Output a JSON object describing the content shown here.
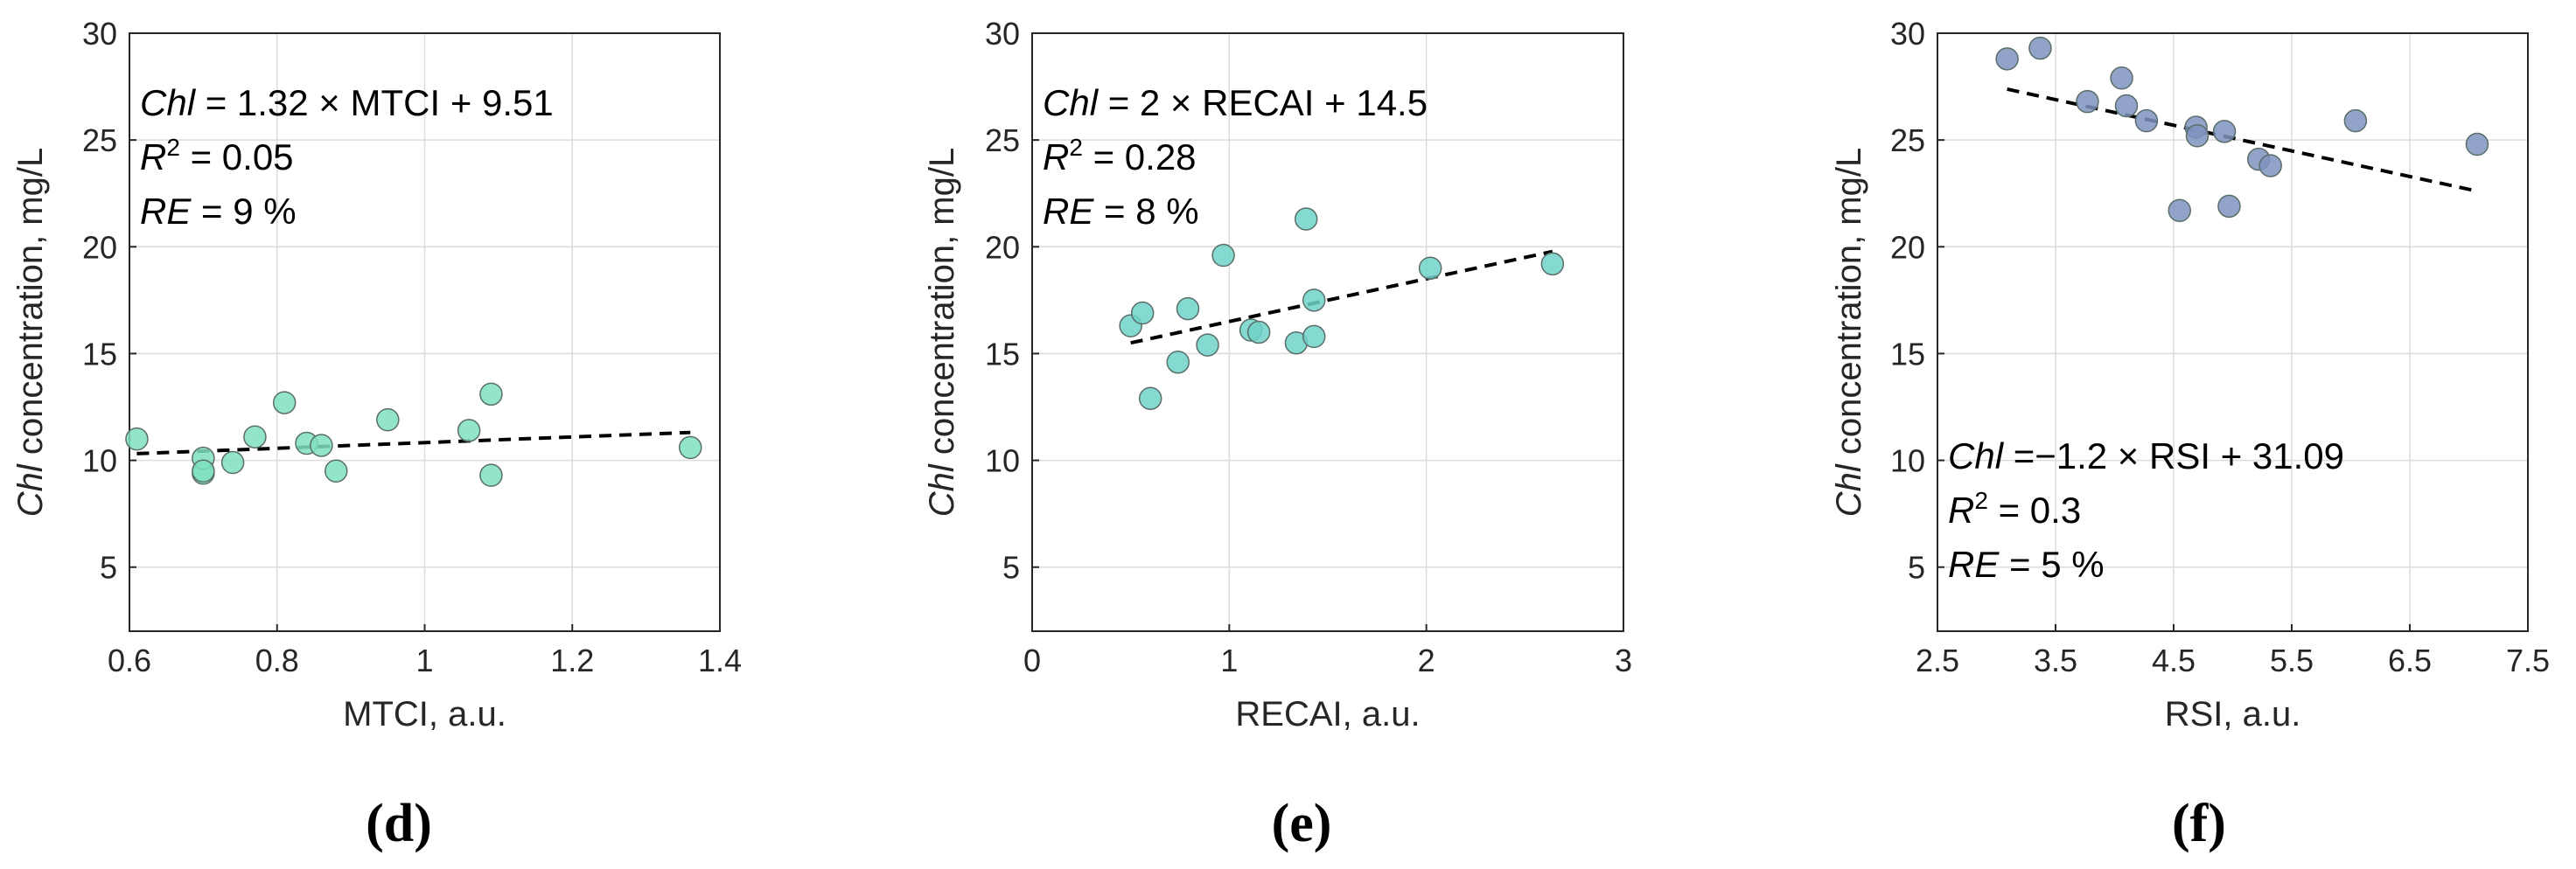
{
  "chart_data": [
    {
      "type": "scatter",
      "panel": "(d)",
      "xlabel": "MTCI, a.u.",
      "ylabel_italic": "Chl",
      "ylabel_rest": " concentration, mg/L",
      "xlim": [
        0.6,
        1.4
      ],
      "ylim": [
        2,
        30
      ],
      "xticks": [
        0.6,
        0.8,
        1,
        1.2,
        1.4
      ],
      "xtick_labels": [
        "0.6",
        "0.8",
        "1",
        "1.2",
        "1.4"
      ],
      "yticks": [
        5,
        10,
        15,
        20,
        25,
        30
      ],
      "ytick_labels": [
        "5",
        "10",
        "15",
        "20",
        "25",
        "30"
      ],
      "grid": true,
      "marker_color": "#7fe0c0",
      "points": [
        {
          "x": 0.61,
          "y": 11.0
        },
        {
          "x": 0.7,
          "y": 9.4
        },
        {
          "x": 0.7,
          "y": 10.1
        },
        {
          "x": 0.7,
          "y": 9.5
        },
        {
          "x": 0.74,
          "y": 9.9
        },
        {
          "x": 0.77,
          "y": 11.1
        },
        {
          "x": 0.81,
          "y": 12.7
        },
        {
          "x": 0.84,
          "y": 10.8
        },
        {
          "x": 0.86,
          "y": 10.7
        },
        {
          "x": 0.88,
          "y": 9.5
        },
        {
          "x": 0.95,
          "y": 11.9
        },
        {
          "x": 1.06,
          "y": 11.4
        },
        {
          "x": 1.09,
          "y": 13.1
        },
        {
          "x": 1.09,
          "y": 9.3
        },
        {
          "x": 1.36,
          "y": 10.6
        }
      ],
      "fit": {
        "slope": 1.32,
        "intercept": 9.51,
        "x_range": [
          0.61,
          1.36
        ]
      },
      "annotation": {
        "position": "top-left",
        "line1_italic": "Chl",
        "line1_rest": " = 1.32 × MTCI + 9.51",
        "line2_base": "R",
        "line2_sup": "2",
        "line2_rest": " = 0.05",
        "line3_italic": "RE",
        "line3_rest": " = 9 %"
      }
    },
    {
      "type": "scatter",
      "panel": "(e)",
      "xlabel": "RECAI, a.u.",
      "ylabel_italic": "Chl",
      "ylabel_rest": " concentration, mg/L",
      "xlim": [
        0,
        3
      ],
      "ylim": [
        2,
        30
      ],
      "xticks": [
        0,
        1,
        2,
        3
      ],
      "xtick_labels": [
        "0",
        "1",
        "2",
        "3"
      ],
      "yticks": [
        5,
        10,
        15,
        20,
        25,
        30
      ],
      "ytick_labels": [
        "5",
        "10",
        "15",
        "20",
        "25",
        "30"
      ],
      "grid": true,
      "marker_color": "#6fd2c8",
      "points": [
        {
          "x": 0.5,
          "y": 16.3
        },
        {
          "x": 0.56,
          "y": 16.9
        },
        {
          "x": 0.6,
          "y": 12.9
        },
        {
          "x": 0.74,
          "y": 14.6
        },
        {
          "x": 0.79,
          "y": 17.1
        },
        {
          "x": 0.89,
          "y": 15.4
        },
        {
          "x": 0.97,
          "y": 19.6
        },
        {
          "x": 1.11,
          "y": 16.1
        },
        {
          "x": 1.15,
          "y": 16.0
        },
        {
          "x": 1.34,
          "y": 15.5
        },
        {
          "x": 1.39,
          "y": 21.3
        },
        {
          "x": 1.43,
          "y": 17.5
        },
        {
          "x": 1.43,
          "y": 15.8
        },
        {
          "x": 2.02,
          "y": 19.0
        },
        {
          "x": 2.64,
          "y": 19.2
        }
      ],
      "fit": {
        "slope": 2.0,
        "intercept": 14.5,
        "x_range": [
          0.5,
          2.64
        ]
      },
      "annotation": {
        "position": "top-left",
        "line1_italic": "Chl",
        "line1_rest": " = 2 × RECAI + 14.5",
        "line2_base": "R",
        "line2_sup": "2",
        "line2_rest": " = 0.28",
        "line3_italic": "RE",
        "line3_rest": " = 8 %"
      }
    },
    {
      "type": "scatter",
      "panel": "(f)",
      "xlabel": "RSI, a.u.",
      "ylabel_italic": "Chl",
      "ylabel_rest": " concentration, mg/L",
      "xlim": [
        2.5,
        7.5
      ],
      "ylim": [
        2,
        30
      ],
      "xticks": [
        2.5,
        3.5,
        4.5,
        5.5,
        6.5,
        7.5
      ],
      "xtick_labels": [
        "2.5",
        "3.5",
        "4.5",
        "5.5",
        "6.5",
        "7.5"
      ],
      "yticks": [
        5,
        10,
        15,
        20,
        25,
        30
      ],
      "ytick_labels": [
        "5",
        "10",
        "15",
        "20",
        "25",
        "30"
      ],
      "grid": true,
      "marker_color": "#7f93c0",
      "points": [
        {
          "x": 3.09,
          "y": 28.8
        },
        {
          "x": 3.37,
          "y": 29.3
        },
        {
          "x": 3.77,
          "y": 26.8
        },
        {
          "x": 4.06,
          "y": 27.9
        },
        {
          "x": 4.1,
          "y": 26.6
        },
        {
          "x": 4.27,
          "y": 25.9
        },
        {
          "x": 4.55,
          "y": 21.7
        },
        {
          "x": 4.69,
          "y": 25.6
        },
        {
          "x": 4.7,
          "y": 25.2
        },
        {
          "x": 4.93,
          "y": 25.4
        },
        {
          "x": 4.97,
          "y": 21.9
        },
        {
          "x": 5.22,
          "y": 24.1
        },
        {
          "x": 5.32,
          "y": 23.8
        },
        {
          "x": 6.04,
          "y": 25.9
        },
        {
          "x": 7.07,
          "y": 24.8
        }
      ],
      "fit": {
        "slope": -1.2,
        "intercept": 31.09,
        "x_range": [
          3.09,
          7.07
        ]
      },
      "annotation": {
        "position": "bottom-left",
        "line1_italic": "Chl",
        "line1_rest": " =−1.2 × RSI + 31.09",
        "line2_base": "R",
        "line2_sup": "2",
        "line2_rest": " = 0.3",
        "line3_italic": "RE",
        "line3_rest": " = 5 %"
      }
    }
  ]
}
